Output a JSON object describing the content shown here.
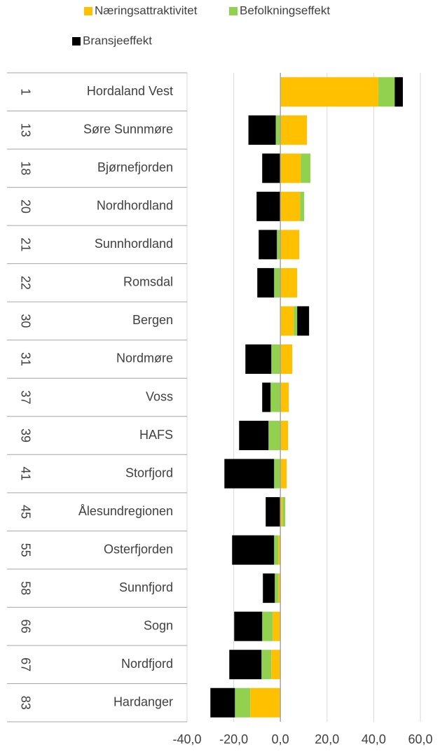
{
  "chart_data": {
    "type": "stacked-barh",
    "ranks": [
      1,
      13,
      18,
      20,
      21,
      22,
      30,
      31,
      37,
      39,
      41,
      45,
      55,
      58,
      66,
      67,
      83
    ],
    "categories": [
      "Hordaland Vest",
      "Søre Sunnmøre",
      "Bjørnefjorden",
      "Nordhordland",
      "Sunnhordland",
      "Romsdal",
      "Bergen",
      "Nordmøre",
      "Voss",
      "HAFS",
      "Storfjord",
      "Ålesundregionen",
      "Osterfjorden",
      "Sunnfjord",
      "Sogn",
      "Nordfjord",
      "Hardanger"
    ],
    "series": [
      {
        "name": "Næringsattraktivitet",
        "color": "#ffc000",
        "values": [
          42,
          11.4,
          8.7,
          8.4,
          8.1,
          7.2,
          5.7,
          5.1,
          3.6,
          3.3,
          2.7,
          0.9,
          -0.9,
          -0.9,
          -3.3,
          -3.9,
          -12.9
        ]
      },
      {
        "name": "Befolkningseffekt",
        "color": "#92d050",
        "values": [
          7,
          -2,
          4.2,
          1.8,
          -1.5,
          -2.7,
          1.5,
          -3.9,
          -4.2,
          -5.1,
          -2.7,
          1.2,
          -1.8,
          -1.5,
          -4.5,
          -4.2,
          -6.6
        ]
      },
      {
        "name": "Bransjeeffekt",
        "color": "#000000",
        "values": [
          3.5,
          -11.7,
          -7.8,
          -10.2,
          -7.8,
          -7.2,
          5.1,
          -11.1,
          -3.6,
          -12.6,
          -21.3,
          -6.3,
          -18,
          -5.1,
          -12,
          -13.8,
          -10.5
        ]
      }
    ],
    "xlim": [
      -40,
      60
    ],
    "xticks": [
      {
        "value": -40,
        "label": "-40,0"
      },
      {
        "value": -20,
        "label": "-20,0"
      },
      {
        "value": 0,
        "label": "0,0"
      },
      {
        "value": 20,
        "label": "20,0"
      },
      {
        "value": 40,
        "label": "40,0"
      },
      {
        "value": 60,
        "label": "60,0"
      }
    ],
    "grid": true
  }
}
